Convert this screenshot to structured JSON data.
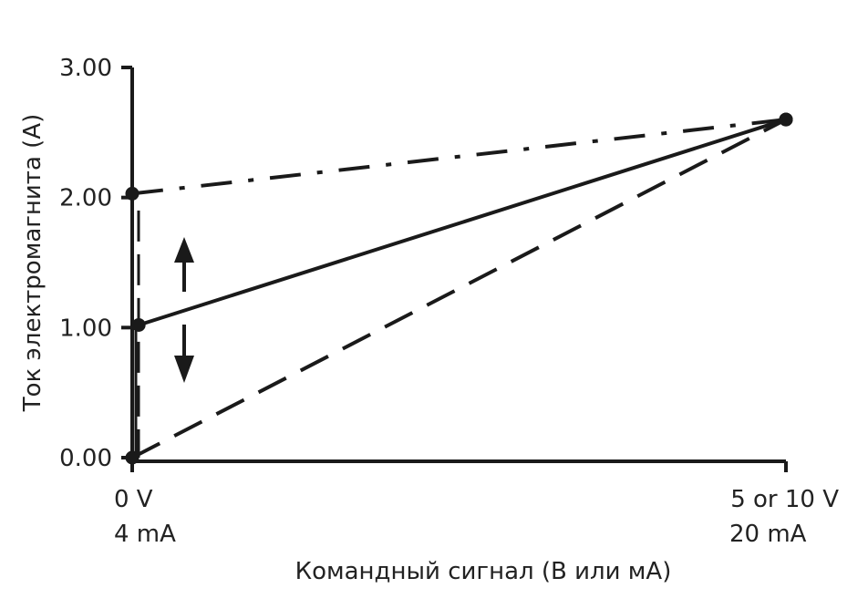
{
  "chart_data": {
    "type": "line",
    "title": "",
    "xlabel": "Командный сигнал (В или мА)",
    "ylabel": "Ток электромагнита (A)",
    "ylim": [
      0,
      3
    ],
    "y_ticks": [
      "3.00",
      "2.00",
      "1.00",
      "0.00"
    ],
    "y_tick_values": [
      3,
      2,
      1,
      0
    ],
    "x_ticks": [
      {
        "line1": "0 V",
        "line2": "4 mA",
        "value": 0
      },
      {
        "line1": "5 or 10 V",
        "line2": "20 mA",
        "value": 1
      }
    ],
    "xlim": [
      0,
      1
    ],
    "series": [
      {
        "style": "dash-dot",
        "x": [
          0,
          1
        ],
        "y": [
          2.03,
          2.6
        ]
      },
      {
        "style": "solid",
        "x": [
          0.01,
          1
        ],
        "y": [
          1.02,
          2.6
        ]
      },
      {
        "style": "dashed",
        "x": [
          0,
          1
        ],
        "y": [
          0,
          2.6
        ]
      }
    ],
    "annotations": [
      {
        "type": "double-arrow",
        "description": "adjustable minimum current"
      }
    ],
    "colors": {
      "line": "#1a1a1a",
      "text": "#222222"
    }
  }
}
